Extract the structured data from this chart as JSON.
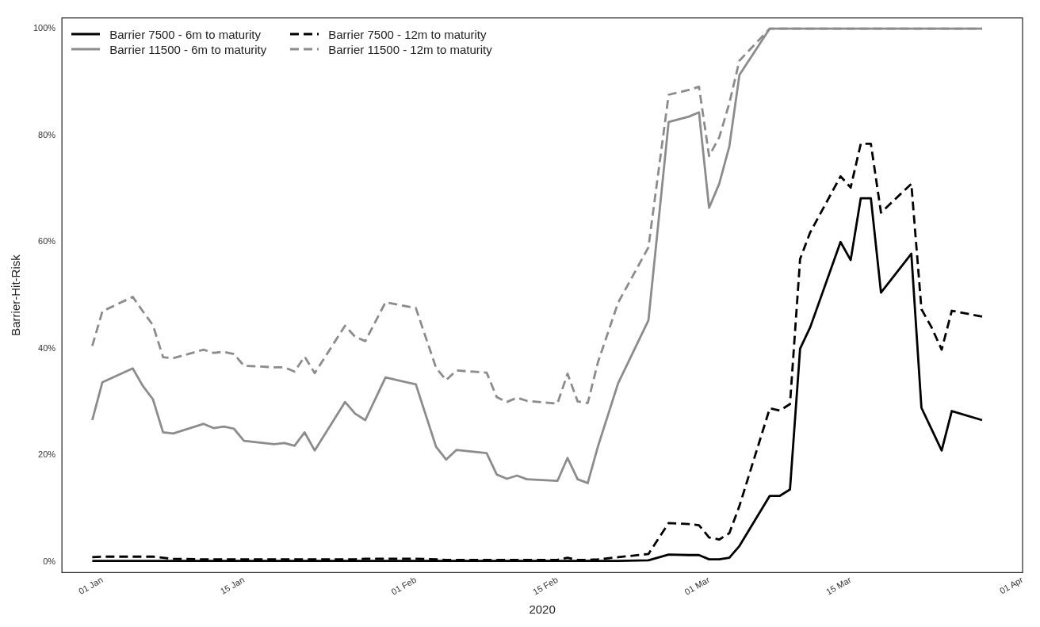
{
  "chart_data": {
    "type": "line",
    "xlabel": "2020",
    "ylabel": "Barrier-Hit-Risk",
    "x": [
      "2019-12-31",
      "2020-01-01",
      "2020-01-04",
      "2020-01-05",
      "2020-01-06",
      "2020-01-07",
      "2020-01-08",
      "2020-01-11",
      "2020-01-12",
      "2020-01-13",
      "2020-01-14",
      "2020-01-15",
      "2020-01-18",
      "2020-01-19",
      "2020-01-20",
      "2020-01-21",
      "2020-01-22",
      "2020-01-25",
      "2020-01-26",
      "2020-01-27",
      "2020-01-29",
      "2020-02-01",
      "2020-02-03",
      "2020-02-04",
      "2020-02-05",
      "2020-02-08",
      "2020-02-09",
      "2020-02-10",
      "2020-02-11",
      "2020-02-12",
      "2020-02-15",
      "2020-02-16",
      "2020-02-17",
      "2020-02-18",
      "2020-02-19",
      "2020-02-21",
      "2020-02-24",
      "2020-02-26",
      "2020-02-28",
      "2020-02-29",
      "2020-03-01",
      "2020-03-02",
      "2020-03-03",
      "2020-03-04",
      "2020-03-07",
      "2020-03-08",
      "2020-03-09",
      "2020-03-10",
      "2020-03-11",
      "2020-03-14",
      "2020-03-15",
      "2020-03-16",
      "2020-03-17",
      "2020-03-18",
      "2020-03-21",
      "2020-03-22",
      "2020-03-23",
      "2020-03-24",
      "2020-03-25",
      "2020-03-28"
    ],
    "series": [
      {
        "name": "Barrier 7500 - 6m to maturity",
        "color": "#000000",
        "line_style": "solid",
        "values": [
          0.2,
          0.2,
          0.2,
          0.2,
          0.2,
          0.2,
          0.2,
          0.2,
          0.2,
          0.2,
          0.2,
          0.2,
          0.2,
          0.2,
          0.2,
          0.2,
          0.2,
          0.2,
          0.2,
          0.2,
          0.2,
          0.2,
          0.2,
          0.2,
          0.2,
          0.2,
          0.2,
          0.2,
          0.2,
          0.2,
          0.2,
          0.2,
          0.2,
          0.2,
          0.2,
          0.2,
          0.3,
          1.4,
          1.3,
          1.3,
          0.5,
          0.5,
          0.8,
          3.0,
          12.4,
          12.4,
          13.6,
          40.0,
          44.0,
          60.0,
          56.6,
          68.2,
          68.2,
          50.5,
          57.8,
          28.9,
          24.9,
          20.9,
          28.3,
          26.6
        ]
      },
      {
        "name": "Barrier 7500 - 12m to maturity",
        "color": "#000000",
        "line_style": "dashed",
        "values": [
          0.9,
          1.0,
          1.0,
          1.0,
          1.0,
          0.8,
          0.6,
          0.5,
          0.5,
          0.5,
          0.5,
          0.5,
          0.5,
          0.5,
          0.5,
          0.5,
          0.5,
          0.5,
          0.5,
          0.6,
          0.6,
          0.6,
          0.5,
          0.4,
          0.4,
          0.4,
          0.4,
          0.4,
          0.4,
          0.4,
          0.4,
          0.8,
          0.4,
          0.4,
          0.5,
          0.9,
          1.5,
          7.3,
          7.1,
          6.9,
          4.6,
          4.2,
          5.4,
          10.5,
          28.8,
          28.4,
          29.6,
          56.8,
          61.8,
          72.3,
          70.2,
          78.4,
          78.4,
          65.5,
          70.9,
          47.4,
          44.0,
          39.8,
          47.1,
          46.0
        ]
      },
      {
        "name": "Barrier 11500 - 6m to maturity",
        "color": "#8c8c8c",
        "line_style": "solid",
        "values": [
          26.6,
          33.7,
          36.3,
          33.0,
          30.5,
          24.3,
          24.1,
          25.9,
          25.1,
          25.4,
          25.0,
          22.7,
          22.1,
          22.3,
          21.8,
          24.3,
          20.9,
          30.0,
          27.8,
          26.6,
          34.6,
          33.3,
          21.6,
          19.2,
          21.0,
          20.4,
          16.4,
          15.6,
          16.2,
          15.5,
          15.2,
          19.5,
          15.5,
          14.8,
          21.6,
          33.5,
          45.3,
          82.5,
          83.5,
          84.3,
          66.4,
          70.9,
          77.9,
          91.3,
          100,
          100,
          100,
          100,
          100,
          100,
          100,
          100,
          100,
          100,
          100,
          100,
          100,
          100,
          100,
          100
        ]
      },
      {
        "name": "Barrier 11500 - 12m to maturity",
        "color": "#8c8c8c",
        "line_style": "dashed",
        "values": [
          40.5,
          47.0,
          49.7,
          47.0,
          44.4,
          38.4,
          38.2,
          39.8,
          39.2,
          39.4,
          39.0,
          36.8,
          36.5,
          36.5,
          35.7,
          38.5,
          35.4,
          44.3,
          42.2,
          41.4,
          48.7,
          47.6,
          36.4,
          34.1,
          35.9,
          35.5,
          30.9,
          30.0,
          30.8,
          30.2,
          29.7,
          35.3,
          30.1,
          29.8,
          37.4,
          48.6,
          59.0,
          87.6,
          88.5,
          89.1,
          76.1,
          79.6,
          86.0,
          94.0,
          100,
          100,
          100,
          100,
          100,
          100,
          100,
          100,
          100,
          100,
          100,
          100,
          100,
          100,
          100,
          100
        ]
      }
    ],
    "xlim": [
      "2019-12-28",
      "2020-04-01"
    ],
    "xticks": [
      {
        "value": "2020-01-01",
        "label": "01 Jan"
      },
      {
        "value": "2020-01-15",
        "label": "15 Jan"
      },
      {
        "value": "2020-02-01",
        "label": "01 Feb"
      },
      {
        "value": "2020-02-15",
        "label": "15 Feb"
      },
      {
        "value": "2020-03-01",
        "label": "01 Mar"
      },
      {
        "value": "2020-03-15",
        "label": "15 Mar"
      },
      {
        "value": "2020-04-01",
        "label": "01 Apr"
      }
    ],
    "ylim": [
      -2,
      102
    ],
    "yticks": [
      {
        "value": 0,
        "label": "0%"
      },
      {
        "value": 20,
        "label": "20%"
      },
      {
        "value": 40,
        "label": "40%"
      },
      {
        "value": 60,
        "label": "60%"
      },
      {
        "value": 80,
        "label": "80%"
      },
      {
        "value": 100,
        "label": "100%"
      }
    ],
    "grid": false,
    "legend": "top left",
    "marker": "none"
  }
}
